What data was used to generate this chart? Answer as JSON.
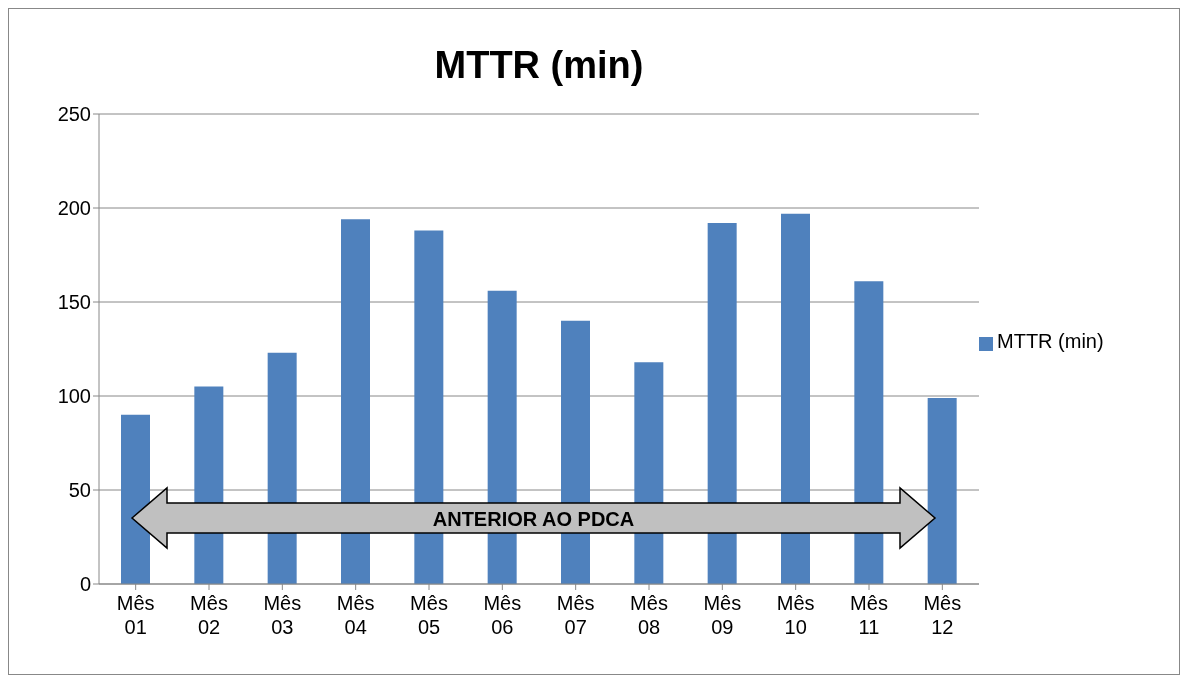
{
  "chart_data": {
    "type": "bar",
    "title": "MTTR (min)",
    "categories": [
      "Mês 01",
      "Mês 02",
      "Mês 03",
      "Mês 04",
      "Mês 05",
      "Mês 06",
      "Mês 07",
      "Mês 08",
      "Mês 09",
      "Mês 10",
      "Mês 11",
      "Mês 12"
    ],
    "series": [
      {
        "name": "MTTR (min)",
        "color": "#4f81bd",
        "values": [
          90,
          105,
          123,
          194,
          188,
          156,
          140,
          118,
          192,
          197,
          161,
          99
        ]
      }
    ],
    "ylim": [
      0,
      250
    ],
    "yticks": [
      0,
      50,
      100,
      150,
      200,
      250
    ],
    "grid": "y",
    "legend": "right",
    "annotations": [
      "ANTERIOR AO PDCA"
    ]
  }
}
